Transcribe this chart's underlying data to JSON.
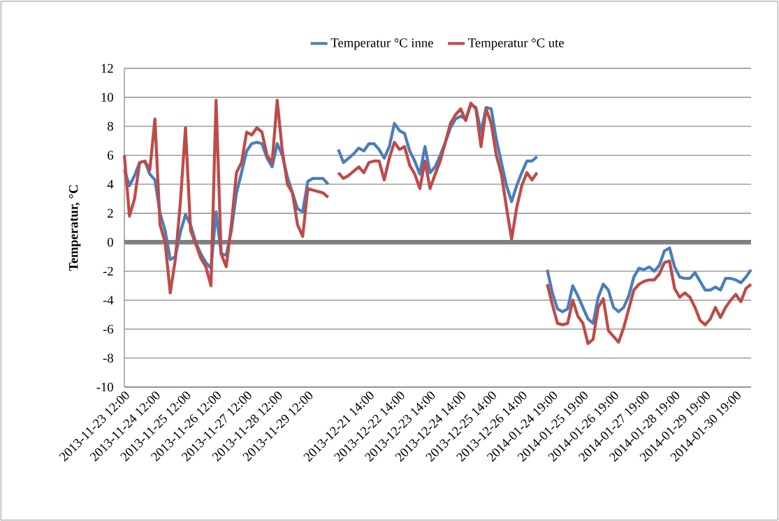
{
  "chart_data": {
    "type": "line",
    "ylabel": "Temperatur, °C",
    "categories": [
      "2013-11-23 12:00",
      null,
      null,
      null,
      null,
      null,
      "2013-11-24 12:00",
      null,
      null,
      null,
      null,
      null,
      "2013-11-25 12:00",
      null,
      null,
      null,
      null,
      null,
      "2013-11-26 12:00",
      null,
      null,
      null,
      null,
      null,
      "2013-11-27 12:00",
      null,
      null,
      null,
      null,
      null,
      "2013-11-28 12:00",
      null,
      null,
      null,
      null,
      null,
      "2013-11-29 12:00",
      null,
      null,
      null,
      null,
      null,
      null,
      null,
      null,
      null,
      null,
      null,
      "2013-12-21 14:00",
      null,
      null,
      null,
      null,
      null,
      "2013-12-22 14:00",
      null,
      null,
      null,
      null,
      null,
      "2013-12-23 14:00",
      null,
      null,
      null,
      null,
      null,
      "2013-12-24 14:00",
      null,
      null,
      null,
      null,
      null,
      "2013-12-25 14:00",
      null,
      null,
      null,
      null,
      null,
      "2013-12-26 14:00",
      null,
      null,
      null,
      null,
      null,
      "2014-01-24 19:00",
      null,
      null,
      null,
      null,
      null,
      "2014-01-25 19:00",
      null,
      null,
      null,
      null,
      null,
      "2014-01-26 19:00",
      null,
      null,
      null,
      null,
      null,
      "2014-01-27 19:00",
      null,
      null,
      null,
      null,
      null,
      "2014-01-28 19:00",
      null,
      null,
      null,
      null,
      null,
      "2014-01-29 19:00",
      null,
      null,
      null,
      null,
      null,
      "2014-01-30 19:00",
      null,
      null,
      null
    ],
    "series": [
      {
        "name": "Temperatur °C inne",
        "color": "#4a7ebb",
        "values": [
          5.0,
          3.9,
          4.6,
          5.5,
          5.6,
          4.7,
          4.3,
          2.0,
          0.8,
          -1.2,
          -1.0,
          0.7,
          1.9,
          1.2,
          0.0,
          -0.8,
          -1.4,
          -1.8,
          2.1,
          -0.8,
          -0.9,
          0.8,
          3.4,
          4.8,
          6.3,
          6.8,
          6.9,
          6.8,
          5.8,
          5.2,
          6.8,
          6.0,
          4.5,
          3.4,
          2.3,
          2.1,
          4.2,
          4.4,
          4.4,
          4.4,
          4.0,
          null,
          6.4,
          5.5,
          5.8,
          6.1,
          6.5,
          6.3,
          6.8,
          6.8,
          6.4,
          5.8,
          6.6,
          8.2,
          7.7,
          7.5,
          6.3,
          5.6,
          4.7,
          6.6,
          4.8,
          5.2,
          6.0,
          6.9,
          7.9,
          8.5,
          8.7,
          8.5,
          9.5,
          9.3,
          7.6,
          9.3,
          9.2,
          7.1,
          5.5,
          3.9,
          2.8,
          3.9,
          4.8,
          5.6,
          5.6,
          5.9,
          null,
          -1.9,
          -3.5,
          -4.6,
          -4.8,
          -4.6,
          -3.0,
          -3.7,
          -4.5,
          -5.3,
          -5.6,
          -3.8,
          -2.9,
          -3.3,
          -4.5,
          -4.8,
          -4.5,
          -3.7,
          -2.4,
          -1.8,
          -1.9,
          -1.7,
          -2.0,
          -1.6,
          -0.6,
          -0.4,
          -1.7,
          -2.4,
          -2.5,
          -2.5,
          -2.1,
          -2.7,
          -3.3,
          -3.3,
          -3.1,
          -3.3,
          -2.5,
          -2.5,
          -2.6,
          -2.8,
          -2.4,
          -1.9
        ]
      },
      {
        "name": "Temperatur °C ute",
        "color": "#be4b48",
        "values": [
          6.0,
          1.8,
          3.0,
          5.5,
          5.6,
          5.0,
          8.5,
          1.2,
          0.0,
          -3.5,
          -1.2,
          2.8,
          7.9,
          0.8,
          -0.1,
          -1.1,
          -1.7,
          -3.0,
          9.8,
          -0.8,
          -1.7,
          1.2,
          4.8,
          5.5,
          7.6,
          7.4,
          7.9,
          7.6,
          6.0,
          5.5,
          9.8,
          6.3,
          4.0,
          3.4,
          1.2,
          0.4,
          3.7,
          3.6,
          3.5,
          3.4,
          3.1,
          null,
          4.8,
          4.4,
          4.6,
          4.9,
          5.2,
          4.8,
          5.5,
          5.6,
          5.6,
          4.3,
          5.8,
          6.9,
          6.4,
          6.6,
          5.3,
          4.7,
          3.7,
          5.6,
          3.7,
          4.7,
          5.6,
          6.9,
          8.2,
          8.8,
          9.2,
          8.4,
          9.6,
          9.2,
          6.6,
          9.2,
          8.2,
          6.0,
          4.7,
          2.4,
          0.2,
          2.4,
          3.9,
          4.8,
          4.3,
          4.8,
          null,
          -2.9,
          -4.3,
          -5.6,
          -5.7,
          -5.6,
          -4.0,
          -5.1,
          -5.6,
          -7.0,
          -6.7,
          -4.5,
          -3.9,
          -6.1,
          -6.5,
          -6.9,
          -5.9,
          -4.6,
          -3.3,
          -2.9,
          -2.7,
          -2.6,
          -2.6,
          -2.2,
          -1.4,
          -1.3,
          -3.2,
          -3.8,
          -3.5,
          -3.8,
          -4.5,
          -5.4,
          -5.7,
          -5.3,
          -4.5,
          -5.2,
          -4.5,
          -4.0,
          -3.6,
          -4.1,
          -3.2,
          -2.9
        ]
      }
    ],
    "ylim": [
      -10,
      12
    ],
    "yticks": [
      -10,
      -8,
      -6,
      -4,
      -2,
      0,
      2,
      4,
      6,
      8,
      10,
      12
    ],
    "grid": "y",
    "legend": "top",
    "line_style": "solid",
    "ref_lines": [
      {
        "axis": "y",
        "value": 0,
        "color": "#808080"
      }
    ]
  }
}
